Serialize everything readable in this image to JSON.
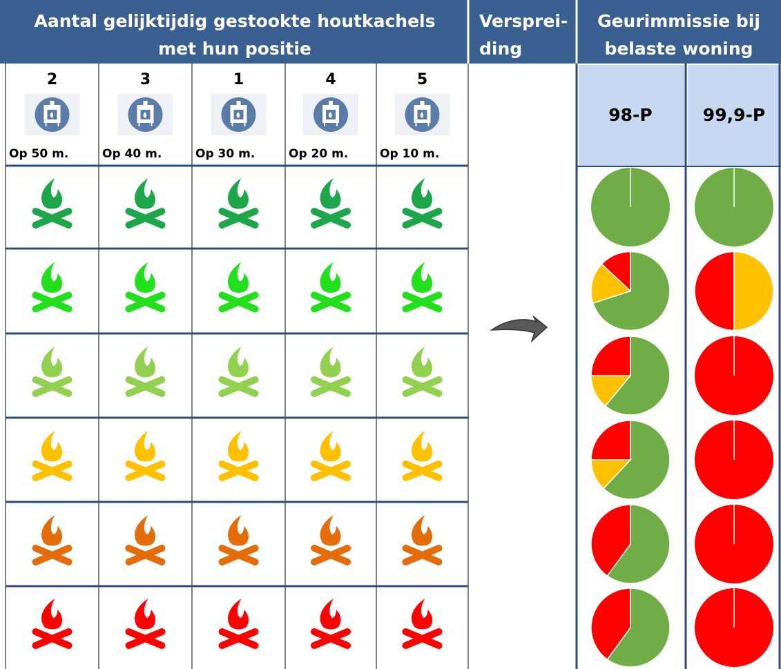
{
  "header": {
    "title": [
      "Aantal gelijktijdig gestookte  houtkachels",
      "met hun positie"
    ],
    "spread": [
      "Versprei-",
      "ding"
    ],
    "odor": [
      "Geurimmissie bij",
      "belaste woning"
    ]
  },
  "stoves": [
    {
      "number": 2,
      "distance": "Op 50 m."
    },
    {
      "number": 3,
      "distance": "Op 40 m."
    },
    {
      "number": 1,
      "distance": "Op 30 m."
    },
    {
      "number": 4,
      "distance": "Op 20 m."
    },
    {
      "number": 5,
      "distance": "Op 10 m."
    }
  ],
  "percentiles": [
    "98-P",
    "99,9-P"
  ],
  "rows": [
    {
      "fire_color": "#1ea64b",
      "pies": [
        [
          {
            "color": "#70ad47",
            "value": 100
          }
        ],
        [
          {
            "color": "#70ad47",
            "value": 100
          }
        ]
      ]
    },
    {
      "fire_color": "#22e01e",
      "pies": [
        [
          {
            "color": "#70ad47",
            "value": 70
          },
          {
            "color": "#ffc000",
            "value": 17
          },
          {
            "color": "#ff0000",
            "value": 13
          }
        ],
        [
          {
            "color": "#ffc000",
            "value": 50
          },
          {
            "color": "#ff0000",
            "value": 50
          }
        ]
      ]
    },
    {
      "fire_color": "#92d050",
      "pies": [
        [
          {
            "color": "#70ad47",
            "value": 61
          },
          {
            "color": "#ffc000",
            "value": 14
          },
          {
            "color": "#ff0000",
            "value": 25
          }
        ],
        [
          {
            "color": "#ff0000",
            "value": 100
          }
        ]
      ]
    },
    {
      "fire_color": "#ffc000",
      "pies": [
        [
          {
            "color": "#70ad47",
            "value": 62
          },
          {
            "color": "#ffc000",
            "value": 13
          },
          {
            "color": "#ff0000",
            "value": 25
          }
        ],
        [
          {
            "color": "#ff0000",
            "value": 100
          }
        ]
      ]
    },
    {
      "fire_color": "#e46c0a",
      "pies": [
        [
          {
            "color": "#70ad47",
            "value": 60
          },
          {
            "color": "#ff0000",
            "value": 40
          }
        ],
        [
          {
            "color": "#ff0000",
            "value": 100
          }
        ]
      ]
    },
    {
      "fire_color": "#ff0000",
      "pies": [
        [
          {
            "color": "#70ad47",
            "value": 60
          },
          {
            "color": "#ff0000",
            "value": 40
          }
        ],
        [
          {
            "color": "#ff0000",
            "value": 100
          }
        ]
      ]
    }
  ]
}
